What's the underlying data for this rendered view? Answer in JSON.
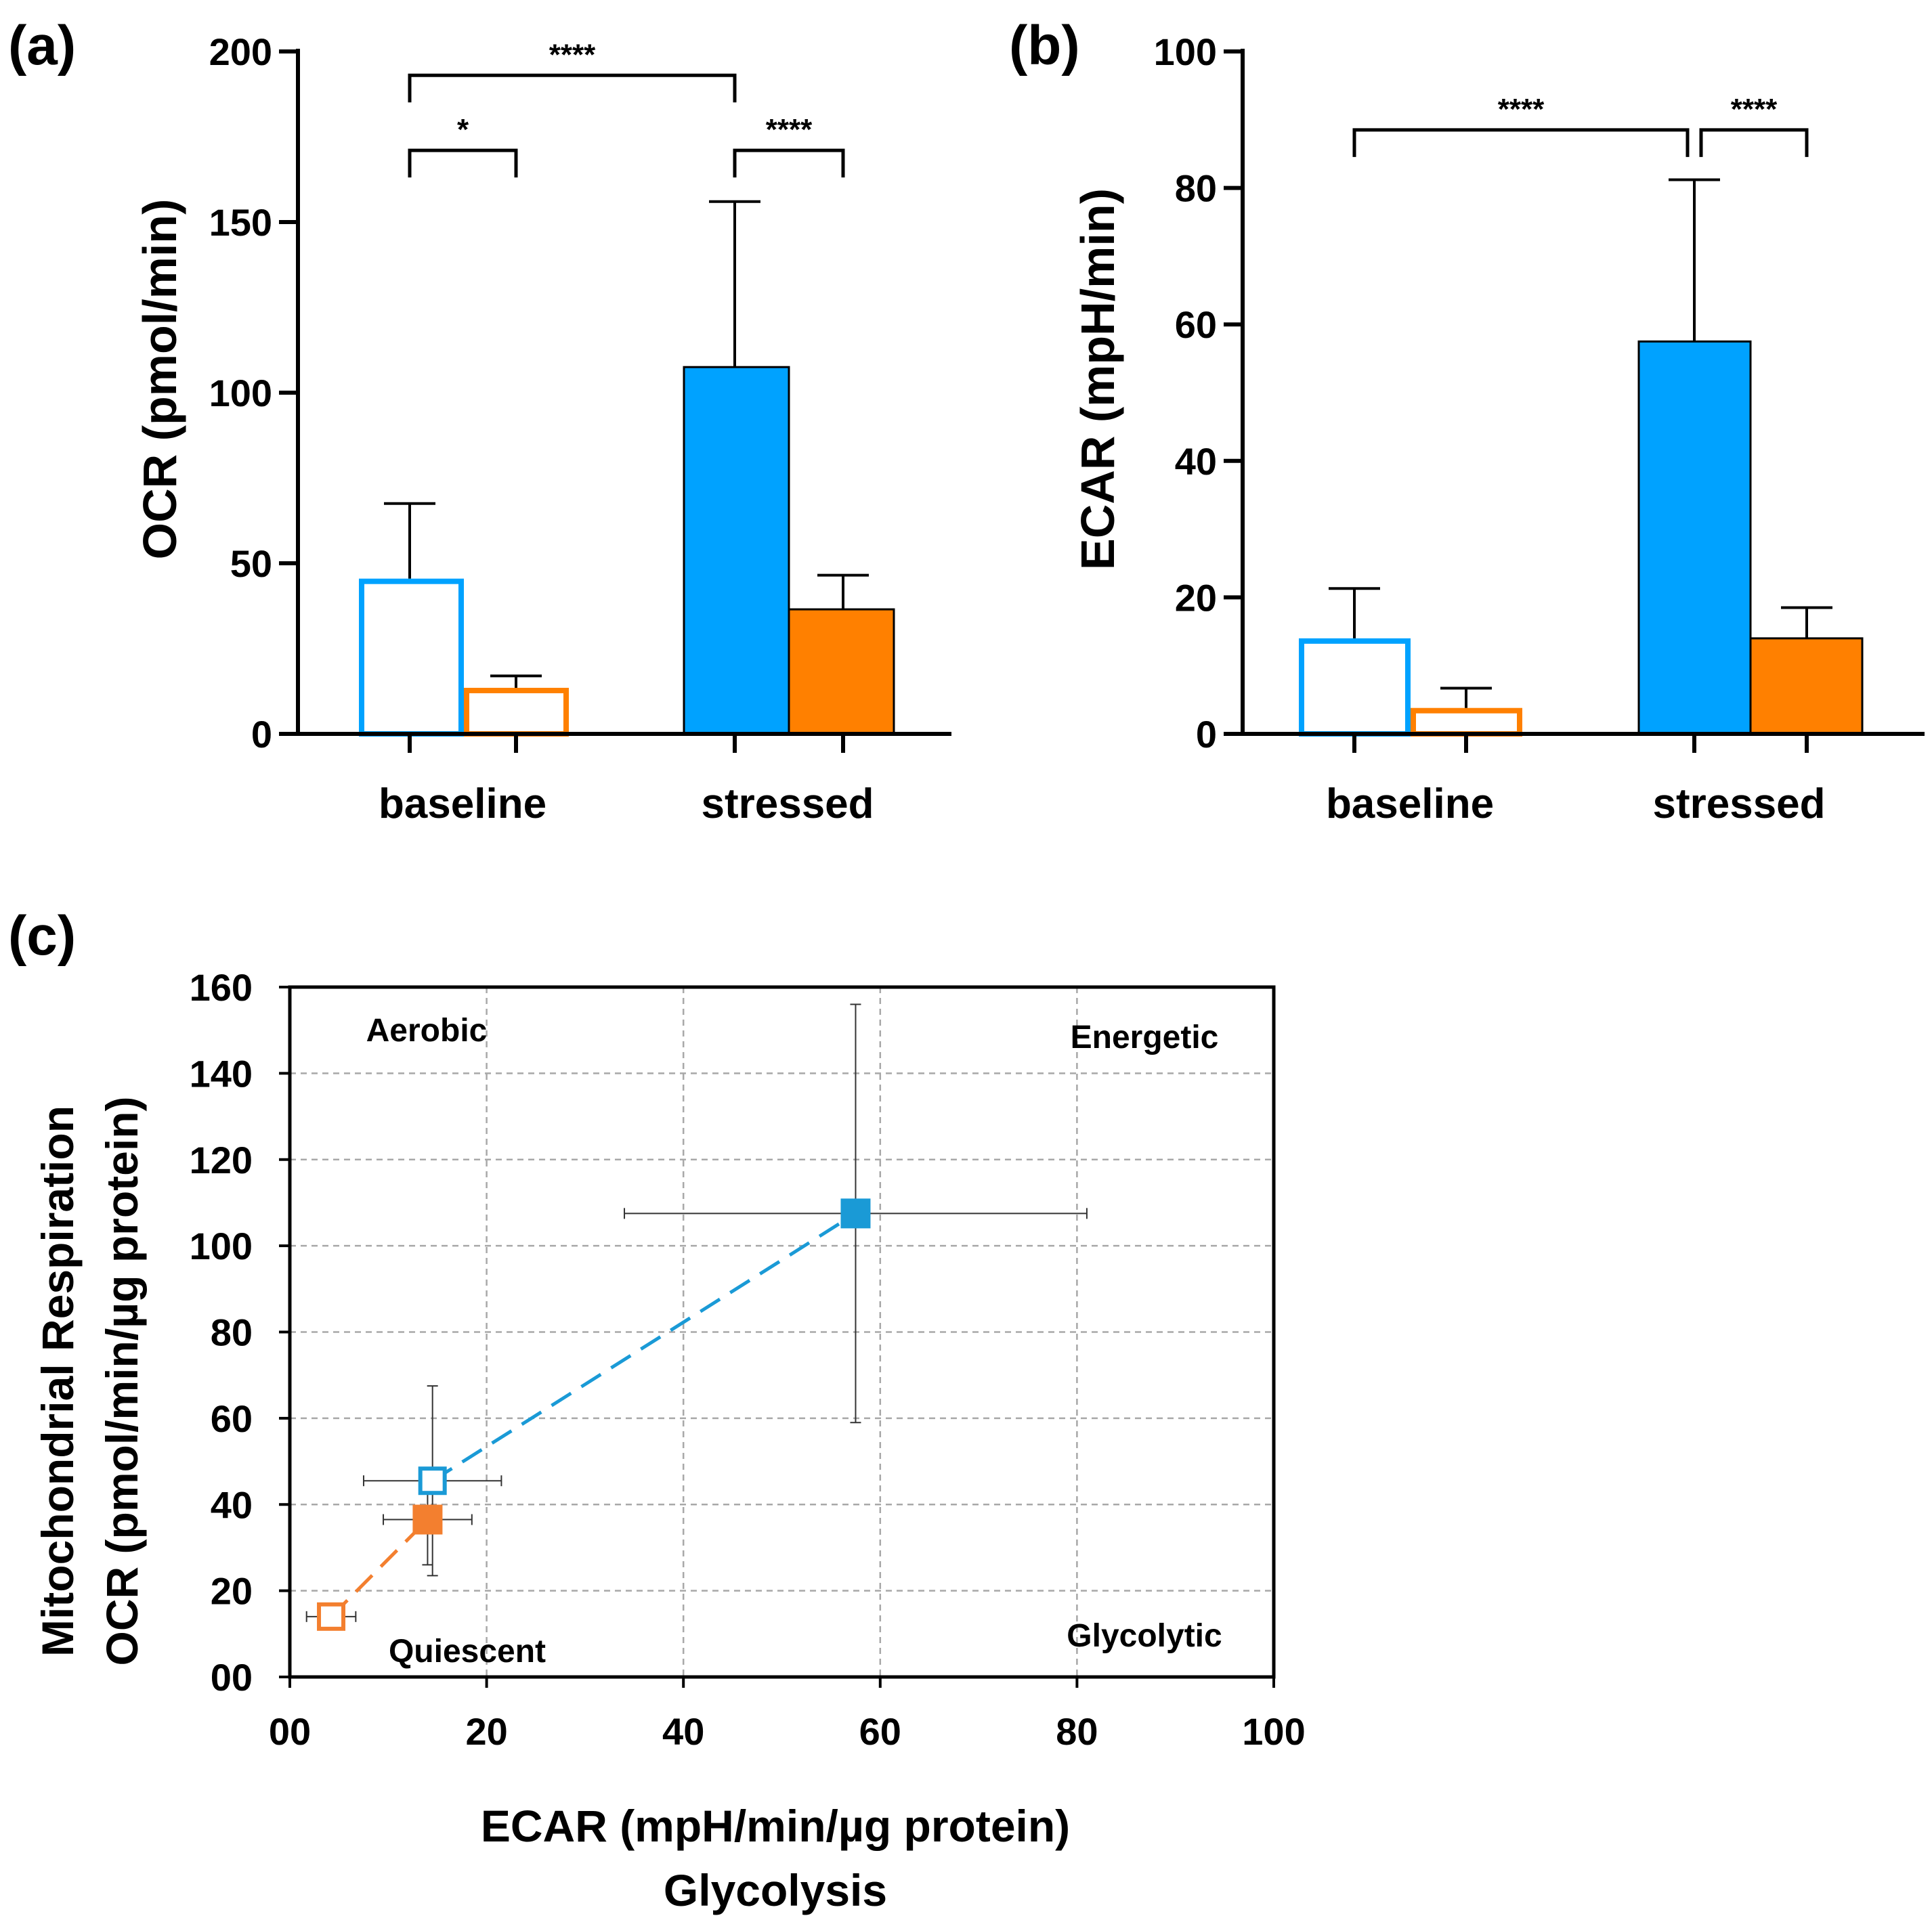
{
  "chart_data": [
    {
      "id": "a",
      "type": "bar",
      "panel_label": "(a)",
      "ylabel": "OCR (pmol/min)",
      "ylim": [
        0,
        200
      ],
      "yticks": [
        "0",
        "50",
        "100",
        "150",
        "200"
      ],
      "categories": [
        "baseline",
        "stressed"
      ],
      "series": [
        {
          "name": "blue",
          "color": "#00a2ff",
          "filled": [
            false,
            true
          ],
          "values": [
            45.5,
            107.5
          ],
          "errors": [
            22,
            48.5
          ]
        },
        {
          "name": "orange",
          "color": "#ff8000",
          "filled": [
            false,
            true
          ],
          "values": [
            13.5,
            36.5
          ],
          "errors": [
            3.5,
            10
          ]
        }
      ],
      "significance": [
        {
          "from": [
            0,
            0
          ],
          "to": [
            0,
            1
          ],
          "label": "*",
          "y": 171
        },
        {
          "from": [
            1,
            0
          ],
          "to": [
            1,
            1
          ],
          "label": "****",
          "y": 171
        },
        {
          "from": [
            0,
            0
          ],
          "to": [
            1,
            0
          ],
          "label": "****",
          "y": 193
        }
      ]
    },
    {
      "id": "b",
      "type": "bar",
      "panel_label": "(b)",
      "ylabel": "ECAR (mpH/min)",
      "ylim": [
        0,
        100
      ],
      "yticks": [
        "0",
        "20",
        "40",
        "60",
        "80",
        "100"
      ],
      "categories": [
        "baseline",
        "stressed"
      ],
      "series": [
        {
          "name": "blue",
          "color": "#00a2ff",
          "filled": [
            false,
            true
          ],
          "values": [
            14,
            57.5
          ],
          "errors": [
            7.3,
            23.7
          ]
        },
        {
          "name": "orange",
          "color": "#ff8000",
          "filled": [
            false,
            true
          ],
          "values": [
            3.8,
            14
          ],
          "errors": [
            2.9,
            4.5
          ]
        }
      ],
      "significance": [
        {
          "from": [
            0,
            0
          ],
          "to": [
            1,
            0
          ],
          "label": "****",
          "y": 88.5
        },
        {
          "from": [
            1,
            0
          ],
          "to": [
            1,
            1
          ],
          "label": "****",
          "y": 88.5
        }
      ]
    },
    {
      "id": "c",
      "type": "scatter",
      "panel_label": "(c)",
      "ylabel_lines": [
        "Mitochondrial Respiration",
        "OCR (pmol/min/µg protein)"
      ],
      "xlabel_lines": [
        "ECAR (mpH/min/µg protein)",
        "Glycolysis"
      ],
      "xlim": [
        0,
        100
      ],
      "ylim": [
        0,
        160
      ],
      "xticks": [
        "00",
        "20",
        "40",
        "60",
        "80",
        "100"
      ],
      "yticks": [
        "00",
        "20",
        "40",
        "60",
        "80",
        "100",
        "120",
        "140",
        "160"
      ],
      "grid": true,
      "quadrants": {
        "top_left": "Aerobic",
        "top_right": "Energetic",
        "bottom_left": "Quiescent",
        "bottom_right": "Glycolytic"
      },
      "series": [
        {
          "name": "blue",
          "color": "#1a9ad6",
          "points": [
            {
              "x": 14.5,
              "y": 45.5,
              "xerr": 7.0,
              "yerr": 22.0,
              "filled": false
            },
            {
              "x": 57.5,
              "y": 107.5,
              "xerr": 23.5,
              "yerr": 48.5,
              "filled": true
            }
          ]
        },
        {
          "name": "orange",
          "color": "#f37f2f",
          "points": [
            {
              "x": 4.2,
              "y": 14.0,
              "xerr": 2.5,
              "yerr": 2.0,
              "filled": false
            },
            {
              "x": 14.0,
              "y": 36.5,
              "xerr": 4.5,
              "yerr": 10.5,
              "filled": true
            }
          ]
        }
      ]
    }
  ]
}
